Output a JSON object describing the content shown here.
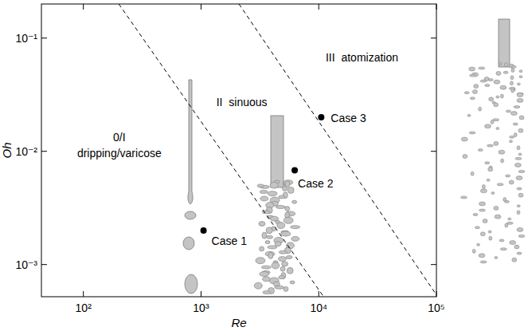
{
  "chart_data": {
    "type": "scatter",
    "x_label": "Re",
    "y_label": "Oh",
    "log": true,
    "grid": false,
    "xlim": [
      44,
      100000
    ],
    "ylim": [
      0.00052,
      0.2
    ],
    "xticks": [
      {
        "value": 100,
        "label": "10²"
      },
      {
        "value": 1000,
        "label": "10³"
      },
      {
        "value": 10000,
        "label": "10⁴"
      },
      {
        "value": 100000,
        "label": "10⁵"
      }
    ],
    "yticks": [
      {
        "value": 0.001,
        "label": "10⁻³"
      },
      {
        "value": 0.01,
        "label": "10⁻²"
      },
      {
        "value": 0.1,
        "label": "10⁻¹"
      }
    ],
    "series": [
      {
        "type": "line",
        "line_style": "dashed",
        "color": "#000000",
        "x": [
          200,
          11000
        ],
        "y": [
          0.2,
          0.00052
        ]
      },
      {
        "type": "line",
        "line_style": "dashed",
        "color": "#000000",
        "x": [
          2100,
          100000
        ],
        "y": [
          0.2,
          0.00054
        ]
      },
      {
        "type": "scatter",
        "marker": "circle",
        "color": "#000000",
        "x": [
          1050,
          6250,
          10500
        ],
        "y": [
          0.002,
          0.0068,
          0.02
        ],
        "labels": [
          "Case 1",
          "Case 2",
          "Case 3"
        ]
      }
    ],
    "annotations": [
      {
        "text": "0/I",
        "x": 202,
        "y": 0.0123
      },
      {
        "text": "dripping/varicose",
        "x": 202,
        "y": 0.0089
      },
      {
        "text": "II  sinuous",
        "x": 2220,
        "y": 0.025
      },
      {
        "text": "III  atomization",
        "x": 23300,
        "y": 0.0625
      }
    ]
  }
}
